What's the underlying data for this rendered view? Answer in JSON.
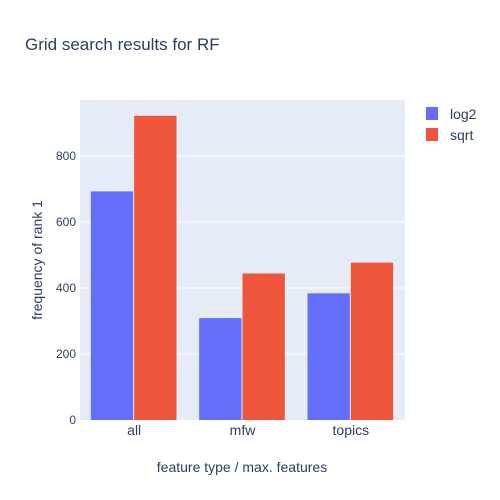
{
  "chart_data": {
    "type": "bar",
    "title": "Grid search results for RF",
    "xlabel": "feature type / max. features",
    "ylabel": "frequency of rank 1",
    "categories": [
      "all",
      "mfw",
      "topics"
    ],
    "series": [
      {
        "name": "log2",
        "values": [
          693,
          309,
          384
        ],
        "color": "#636efa"
      },
      {
        "name": "sqrt",
        "values": [
          922,
          444,
          477
        ],
        "color": "#ef553b"
      }
    ],
    "ylim": [
      0,
      970
    ],
    "yticks": [
      0,
      200,
      400,
      600,
      800
    ],
    "grid": true,
    "plot_background": "#e5ecf6",
    "legend_position": "top-right"
  }
}
